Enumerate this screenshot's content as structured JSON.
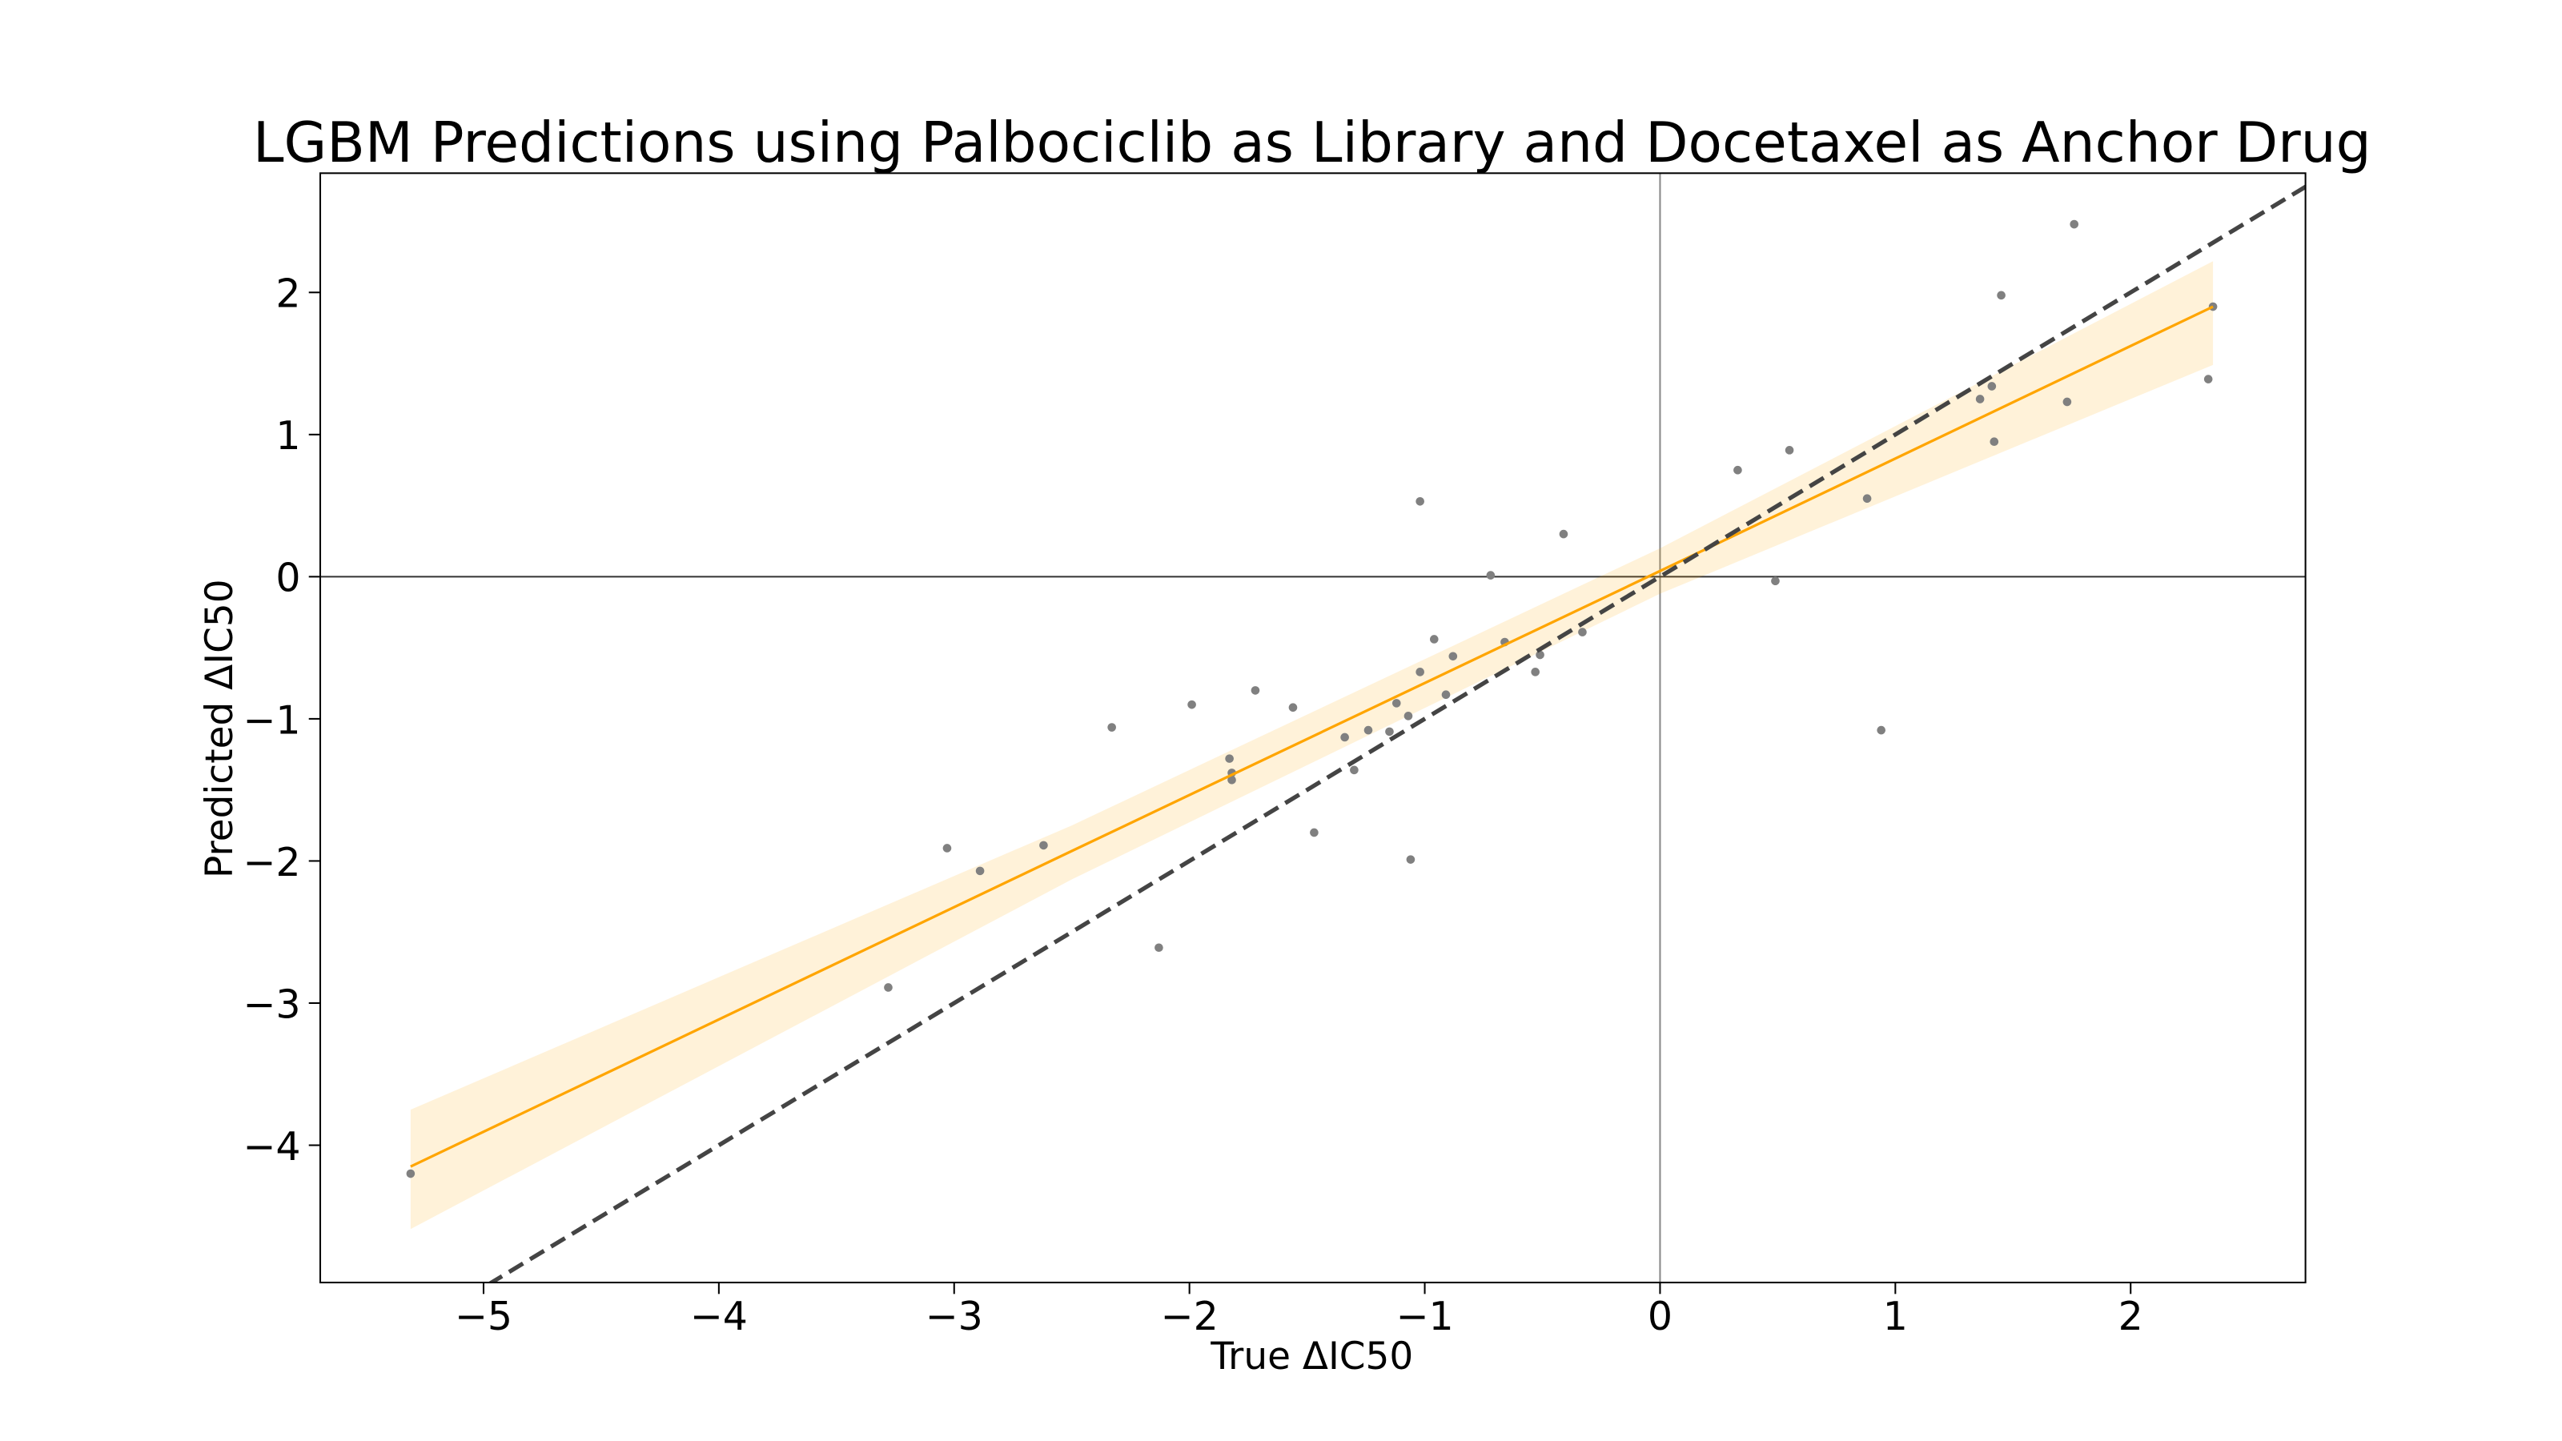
{
  "chart_data": {
    "type": "scatter",
    "title": "LGBM Predictions using Palbociclib as Library and Docetaxel as Anchor Drug",
    "x_label": "True ΔIC50",
    "y_label": "Predicted ΔIC50",
    "xlim": [
      -5.694,
      2.743
    ],
    "ylim": [
      -4.966,
      2.839
    ],
    "xticks": [
      {
        "value": -5,
        "label": "−5"
      },
      {
        "value": -4,
        "label": "−4"
      },
      {
        "value": -3,
        "label": "−3"
      },
      {
        "value": -2,
        "label": "−2"
      },
      {
        "value": -1,
        "label": "−1"
      },
      0,
      1,
      2
    ],
    "yticks": [
      {
        "value": -4,
        "label": "−4"
      },
      {
        "value": -3,
        "label": "−3"
      },
      {
        "value": -2,
        "label": "−2"
      },
      {
        "value": -1,
        "label": "−1"
      },
      0,
      1,
      2
    ],
    "point_color": "#808080",
    "x": [
      -5.31,
      -3.28,
      -3.03,
      -2.89,
      -2.62,
      -2.33,
      -2.13,
      -1.99,
      -1.83,
      -1.82,
      -1.82,
      -1.72,
      -1.56,
      -1.47,
      -1.34,
      -1.3,
      -1.24,
      -1.15,
      -1.12,
      -1.07,
      -1.06,
      -1.02,
      -1.02,
      -0.96,
      -0.91,
      -0.88,
      -0.72,
      -0.66,
      -0.53,
      -0.51,
      -0.41,
      -0.33,
      0.33,
      0.49,
      0.55,
      0.88,
      0.94,
      1.36,
      1.41,
      1.42,
      1.45,
      1.73,
      1.76,
      2.33,
      2.35
    ],
    "values": [
      -4.2,
      -2.89,
      -1.91,
      -2.07,
      -1.89,
      -1.06,
      -2.61,
      -0.9,
      -1.28,
      -1.38,
      -1.43,
      -0.8,
      -0.92,
      -1.8,
      -1.13,
      -1.36,
      -1.08,
      -1.09,
      -0.89,
      -0.98,
      -1.99,
      -0.67,
      0.53,
      -0.44,
      -0.83,
      -0.56,
      0.01,
      -0.46,
      -0.67,
      -0.55,
      0.3,
      -0.39,
      0.75,
      -0.03,
      0.89,
      0.55,
      -1.08,
      1.25,
      1.34,
      0.95,
      1.98,
      1.23,
      2.48,
      1.39,
      1.9
    ],
    "regression": {
      "color": "#ffa500",
      "x": [
        -5.31,
        -2.5,
        0,
        2.35
      ],
      "values": [
        -4.15,
        -1.93,
        0.04,
        1.9
      ],
      "lower": [
        -4.59,
        -2.13,
        -0.12,
        1.49
      ],
      "upper": [
        -3.75,
        -1.75,
        0.2,
        2.22
      ]
    },
    "identity_line": true,
    "identity_color": "#444444",
    "zero_lines": true
  }
}
